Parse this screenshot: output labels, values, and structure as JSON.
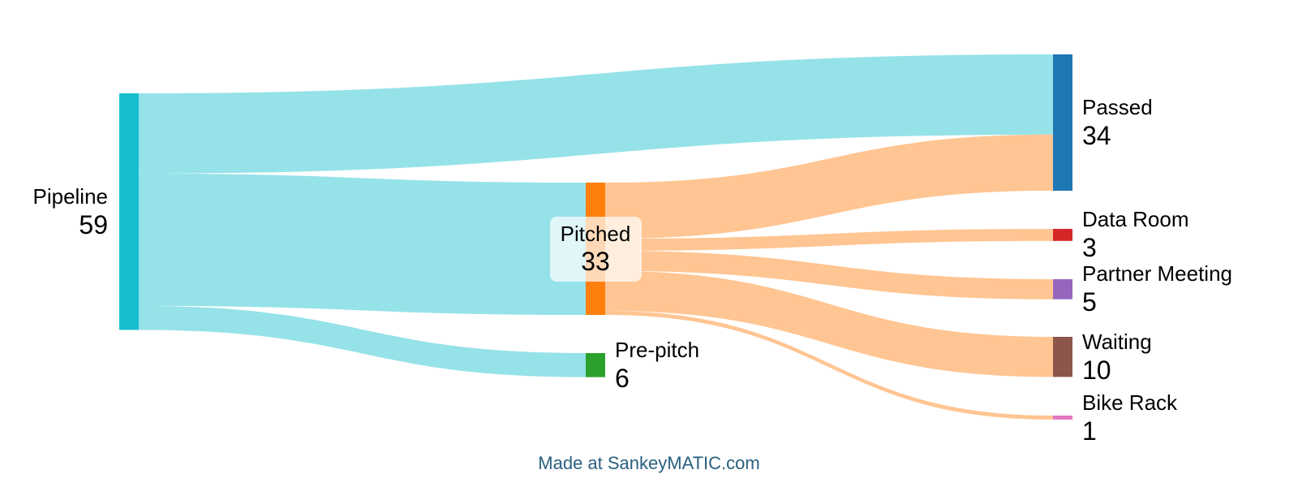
{
  "chart_data": {
    "type": "sankey",
    "nodes": [
      {
        "id": "pipeline",
        "name": "Pipeline",
        "value": 59,
        "color": "#17becf"
      },
      {
        "id": "pitched",
        "name": "Pitched",
        "value": 33,
        "color": "#ff7f0e"
      },
      {
        "id": "prepitch",
        "name": "Pre-pitch",
        "value": 6,
        "color": "#2ca02c"
      },
      {
        "id": "passed",
        "name": "Passed",
        "value": 34,
        "color": "#1f77b4"
      },
      {
        "id": "dataroom",
        "name": "Data Room",
        "value": 3,
        "color": "#d62728"
      },
      {
        "id": "partner",
        "name": "Partner Meeting",
        "value": 5,
        "color": "#9467bd"
      },
      {
        "id": "waiting",
        "name": "Waiting",
        "value": 10,
        "color": "#8c564b"
      },
      {
        "id": "bikerack",
        "name": "Bike Rack",
        "value": 1,
        "color": "#e377c2"
      }
    ],
    "links": [
      {
        "source": "pipeline",
        "target": "passed",
        "value": 20
      },
      {
        "source": "pipeline",
        "target": "pitched",
        "value": 33
      },
      {
        "source": "pipeline",
        "target": "prepitch",
        "value": 6
      },
      {
        "source": "pitched",
        "target": "passed",
        "value": 14
      },
      {
        "source": "pitched",
        "target": "dataroom",
        "value": 3
      },
      {
        "source": "pitched",
        "target": "partner",
        "value": 5
      },
      {
        "source": "pitched",
        "target": "waiting",
        "value": 10
      },
      {
        "source": "pitched",
        "target": "bikerack",
        "value": 1
      }
    ]
  },
  "footer": {
    "credit": "Made at SankeyMATIC.com"
  }
}
